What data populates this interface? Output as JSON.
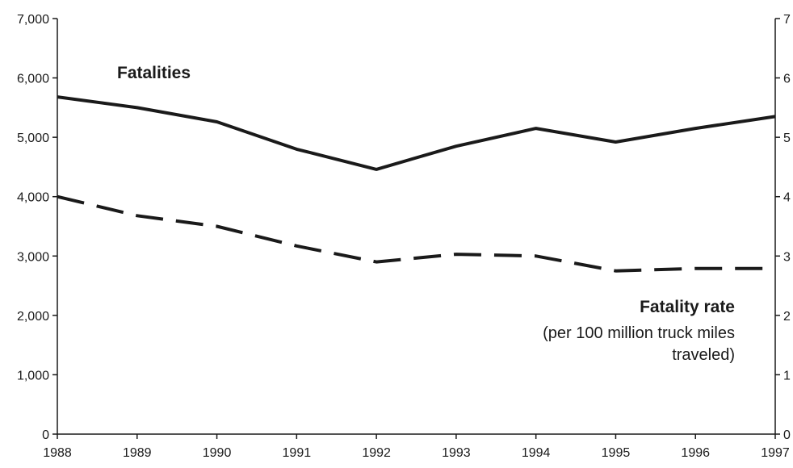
{
  "chart_data": {
    "type": "line",
    "x": [
      "1988",
      "1989",
      "1990",
      "1991",
      "1992",
      "1993",
      "1994",
      "1995",
      "1996",
      "1997"
    ],
    "ylim": [
      0,
      7000
    ],
    "y_ticks": [
      "0",
      "1,000",
      "2,000",
      "3,000",
      "4,000",
      "5,000",
      "6,000",
      "7,000"
    ],
    "y2_ticks": [
      "0",
      "1",
      "2",
      "3",
      "4",
      "5",
      "6",
      "7"
    ],
    "y2lim": [
      0,
      7
    ],
    "grid": false,
    "series": [
      {
        "name": "Fatalities",
        "axis": "left",
        "style": "solid",
        "color": "#1a1a1a",
        "values": [
          5680,
          5500,
          5260,
          4800,
          4460,
          4850,
          5150,
          4920,
          5150,
          5350
        ]
      },
      {
        "name": "Fatality rate",
        "subtitle_lines": [
          "(per 100 million truck miles",
          "traveled)"
        ],
        "axis": "right",
        "style": "dashed",
        "color": "#1a1a1a",
        "values": [
          4.0,
          3.68,
          3.5,
          3.17,
          2.9,
          3.03,
          3.0,
          2.75,
          2.79,
          2.79
        ]
      }
    ]
  }
}
